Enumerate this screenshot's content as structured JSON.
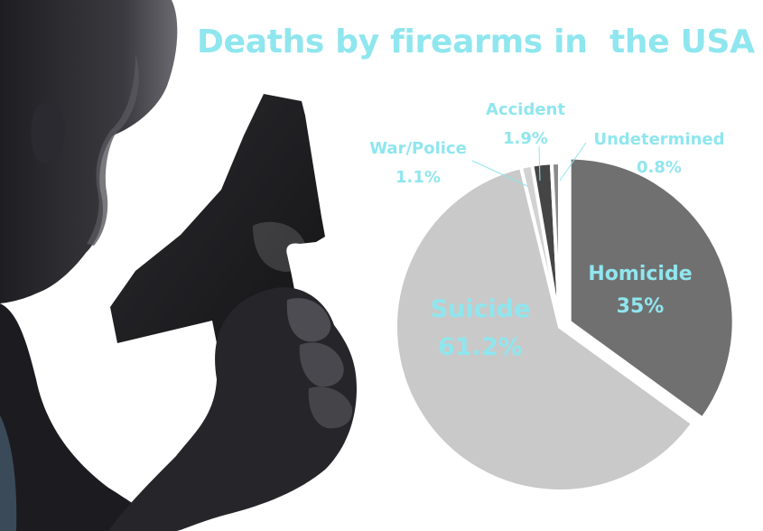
{
  "chart_data": {
    "type": "pie",
    "title": "Deaths by firearms in  the USA",
    "slices": [
      {
        "label": "Homicide",
        "value_label": "35%",
        "value": 35.0,
        "color": "#707070",
        "exploded": true
      },
      {
        "label": "Suicide",
        "value_label": "61.2%",
        "value": 61.2,
        "color": "#c9c9c9",
        "exploded": false
      },
      {
        "label": "War/Police",
        "value_label": "1.1%",
        "value": 1.1,
        "color": "#d2d2d2",
        "exploded": false
      },
      {
        "label": "Accident",
        "value_label": "1.9%",
        "value": 1.9,
        "color": "#454545",
        "exploded": false
      },
      {
        "label": "Undetermined",
        "value_label": "0.8%",
        "value": 0.8,
        "color": "#8a8a8a",
        "exploded": false
      }
    ],
    "label_color": "#8fe6ee"
  },
  "background": {
    "description_icon": "man-holding-pistol-silhouette"
  }
}
